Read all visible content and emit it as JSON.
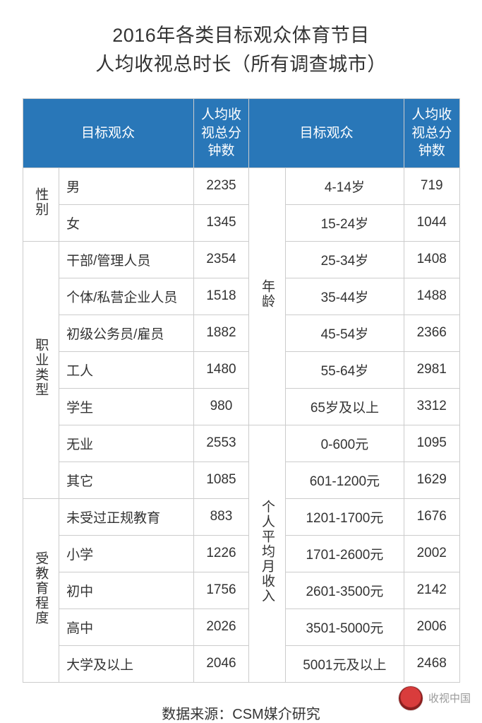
{
  "title_line1": "2016年各类目标观众体育节目",
  "title_line2": "人均收视总时长（所有调查城市）",
  "header": {
    "left_audience": "目标观众",
    "left_minutes": "人均收视总分钟数",
    "right_audience": "目标观众",
    "right_minutes": "人均收视总分钟数"
  },
  "categories": {
    "gender": "性别",
    "occupation": "职业类型",
    "education": "受教育程度",
    "age": "年龄",
    "income": "个人平均月收入"
  },
  "left_rows": [
    {
      "cat": "gender",
      "label": "男",
      "value": "2235",
      "catFirst": true,
      "catSpan": 2
    },
    {
      "cat": "gender",
      "label": "女",
      "value": "1345"
    },
    {
      "cat": "occupation",
      "label": "干部/管理人员",
      "value": "2354",
      "catFirst": true,
      "catSpan": 7
    },
    {
      "cat": "occupation",
      "label": "个体/私营企业人员",
      "value": "1518"
    },
    {
      "cat": "occupation",
      "label": "初级公务员/雇员",
      "value": "1882"
    },
    {
      "cat": "occupation",
      "label": "工人",
      "value": "1480"
    },
    {
      "cat": "occupation",
      "label": "学生",
      "value": "980"
    },
    {
      "cat": "occupation",
      "label": "无业",
      "value": "2553"
    },
    {
      "cat": "occupation",
      "label": "其它",
      "value": "1085"
    },
    {
      "cat": "education",
      "label": "未受过正规教育",
      "value": "883",
      "catFirst": true,
      "catSpan": 5
    },
    {
      "cat": "education",
      "label": "小学",
      "value": "1226"
    },
    {
      "cat": "education",
      "label": "初中",
      "value": "1756"
    },
    {
      "cat": "education",
      "label": "高中",
      "value": "2026"
    },
    {
      "cat": "education",
      "label": "大学及以上",
      "value": "2046"
    }
  ],
  "right_rows": [
    {
      "cat": "age",
      "label": "4-14岁",
      "value": "719",
      "catFirst": true,
      "catSpan": 7
    },
    {
      "cat": "age",
      "label": "15-24岁",
      "value": "1044"
    },
    {
      "cat": "age",
      "label": "25-34岁",
      "value": "1408"
    },
    {
      "cat": "age",
      "label": "35-44岁",
      "value": "1488"
    },
    {
      "cat": "age",
      "label": "45-54岁",
      "value": "2366"
    },
    {
      "cat": "age",
      "label": "55-64岁",
      "value": "2981"
    },
    {
      "cat": "age",
      "label": "65岁及以上",
      "value": "3312"
    },
    {
      "cat": "income",
      "label": "0-600元",
      "value": "1095",
      "catFirst": true,
      "catSpan": 7
    },
    {
      "cat": "income",
      "label": "601-1200元",
      "value": "1629"
    },
    {
      "cat": "income",
      "label": "1201-1700元",
      "value": "1676"
    },
    {
      "cat": "income",
      "label": "1701-2600元",
      "value": "2002"
    },
    {
      "cat": "income",
      "label": "2601-3500元",
      "value": "2142"
    },
    {
      "cat": "income",
      "label": "3501-5000元",
      "value": "2006"
    },
    {
      "cat": "income",
      "label": "5001元及以上",
      "value": "2468"
    }
  ],
  "source": "数据来源：CSM媒介研究",
  "footer_name": "收视中国",
  "colors": {
    "header_bg": "#2977b8",
    "header_fg": "#ffffff",
    "border": "#cccccc",
    "text": "#333333",
    "footer_text": "#9a9a9a",
    "background": "#ffffff"
  }
}
